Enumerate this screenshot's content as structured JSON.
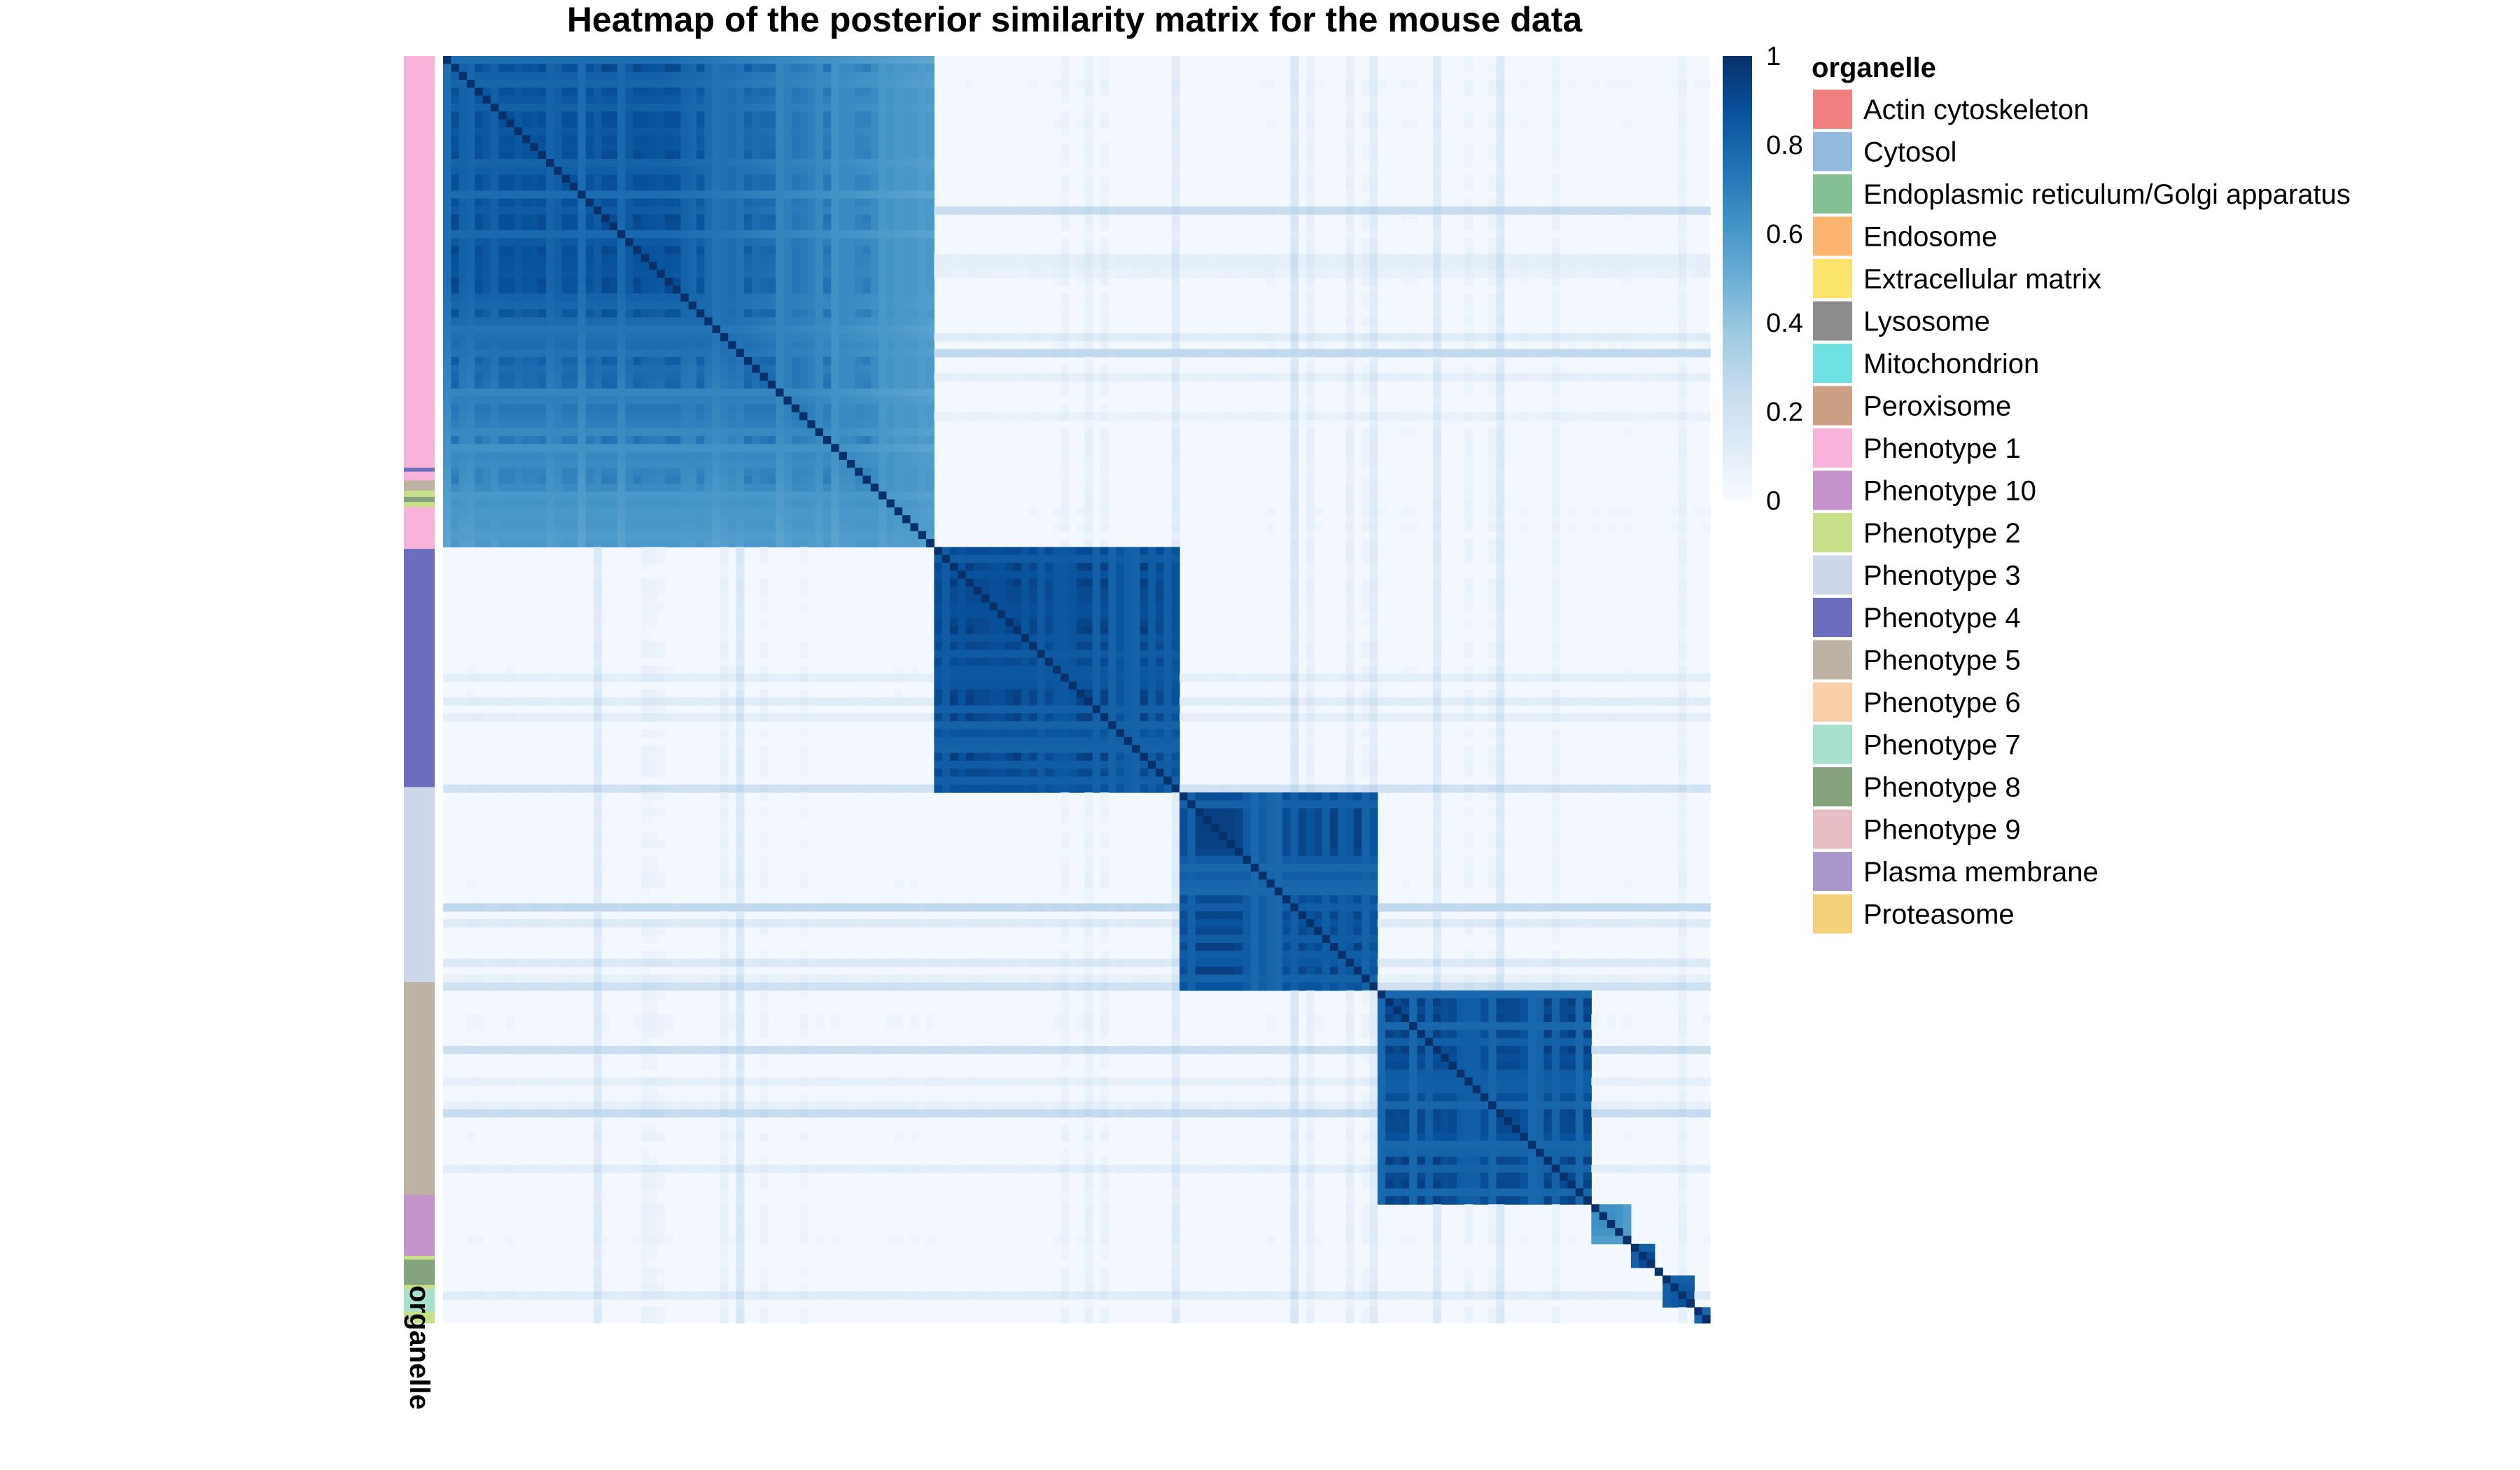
{
  "chart_data": {
    "type": "heatmap",
    "title": "Heatmap of the posterior similarity matrix for the mouse data",
    "colorbar": {
      "ticks": [
        "0",
        "0.2",
        "0.4",
        "0.6",
        "0.8",
        "1"
      ],
      "range": [
        0,
        1
      ],
      "colors": [
        "#f7fbff",
        "#deebf7",
        "#c6dbef",
        "#9ecae1",
        "#6baed6",
        "#4292c6",
        "#2171b5",
        "#08519c",
        "#08306b"
      ]
    },
    "annotation": {
      "label": "organelle",
      "title": "organelle",
      "categories": [
        {
          "name": "Actin cytoskeleton",
          "color": "#f08080"
        },
        {
          "name": "Cytosol",
          "color": "#94b9de"
        },
        {
          "name": "Endoplasmic reticulum/Golgi apparatus",
          "color": "#85bf94"
        },
        {
          "name": "Endosome",
          "color": "#fdb46e"
        },
        {
          "name": "Extracellular matrix",
          "color": "#fbe46c"
        },
        {
          "name": "Lysosome",
          "color": "#8c8c8c"
        },
        {
          "name": "Mitochondrion",
          "color": "#6ee2e2"
        },
        {
          "name": "Peroxisome",
          "color": "#cc9f85"
        },
        {
          "name": "Phenotype 1",
          "color": "#f7b3d9"
        },
        {
          "name": "Phenotype 10",
          "color": "#c493cc"
        },
        {
          "name": "Phenotype 2",
          "color": "#c9e08a"
        },
        {
          "name": "Phenotype 3",
          "color": "#ccd8ea"
        },
        {
          "name": "Phenotype 4",
          "color": "#6d6dbf"
        },
        {
          "name": "Phenotype 5",
          "color": "#bdb2a3"
        },
        {
          "name": "Phenotype 6",
          "color": "#fccfab"
        },
        {
          "name": "Phenotype 7",
          "color": "#a8e0cd"
        },
        {
          "name": "Phenotype 8",
          "color": "#85a37e"
        },
        {
          "name": "Phenotype 9",
          "color": "#e6bec3"
        },
        {
          "name": "Plasma membrane",
          "color": "#a898cc"
        },
        {
          "name": "Proteasome",
          "color": "#f5d07a"
        }
      ],
      "segments": [
        {
          "organelle": "Phenotype 1",
          "frac": 0.325
        },
        {
          "organelle": "Phenotype 4",
          "frac": 0.003
        },
        {
          "organelle": "Phenotype 1",
          "frac": 0.007
        },
        {
          "organelle": "Phenotype 5",
          "frac": 0.008
        },
        {
          "organelle": "Phenotype 2",
          "frac": 0.005
        },
        {
          "organelle": "Phenotype 8",
          "frac": 0.004
        },
        {
          "organelle": "Phenotype 2",
          "frac": 0.004
        },
        {
          "organelle": "Phenotype 1",
          "frac": 0.033
        },
        {
          "organelle": "Phenotype 4",
          "frac": 0.188
        },
        {
          "organelle": "Phenotype 3",
          "frac": 0.154
        },
        {
          "organelle": "Phenotype 5",
          "frac": 0.168
        },
        {
          "organelle": "Phenotype 10",
          "frac": 0.048
        },
        {
          "organelle": "Phenotype 2",
          "frac": 0.003
        },
        {
          "organelle": "Phenotype 8",
          "frac": 0.02
        },
        {
          "organelle": "Phenotype 2",
          "frac": 0.003
        },
        {
          "organelle": "Phenotype 7",
          "frac": 0.018
        },
        {
          "organelle": "Phenotype 2",
          "frac": 0.009
        }
      ]
    },
    "clusters": [
      {
        "id": "A",
        "start": 0.0,
        "end": 0.39,
        "strength": 0.93
      },
      {
        "id": "B",
        "start": 0.39,
        "end": 0.58,
        "strength": 0.97
      },
      {
        "id": "C",
        "start": 0.58,
        "end": 0.735,
        "strength": 0.96
      },
      {
        "id": "D",
        "start": 0.735,
        "end": 0.905,
        "strength": 0.96
      },
      {
        "id": "E",
        "start": 0.905,
        "end": 0.94,
        "strength": 0.65
      },
      {
        "id": "F",
        "start": 0.94,
        "end": 0.958,
        "strength": 0.95
      },
      {
        "id": "G",
        "start": 0.965,
        "end": 0.985,
        "strength": 0.95
      },
      {
        "id": "H",
        "start": 0.99,
        "end": 1.0,
        "strength": 0.9
      }
    ]
  }
}
